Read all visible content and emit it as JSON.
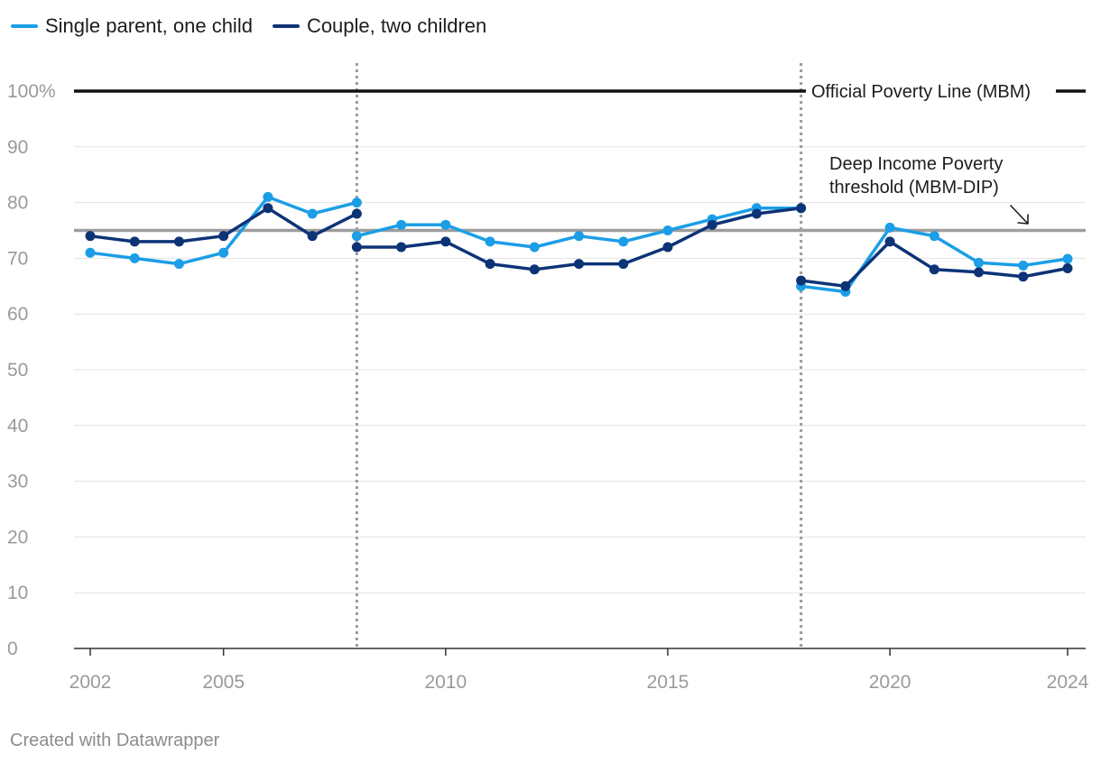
{
  "legend": [
    {
      "label": "Single parent, one child",
      "color": "#1b9ee6"
    },
    {
      "label": "Couple, two children",
      "color": "#0d3377"
    }
  ],
  "credit": "Created with Datawrapper",
  "chart_data": {
    "type": "line",
    "title": "",
    "xlabel": "",
    "ylabel": "",
    "ylim": [
      0,
      100
    ],
    "xlim": [
      2002,
      2024
    ],
    "y_ticks": [
      0,
      10,
      20,
      30,
      40,
      50,
      60,
      70,
      80,
      90,
      100
    ],
    "y_tick_labels": [
      "0",
      "10",
      "20",
      "30",
      "40",
      "50",
      "60",
      "70",
      "80",
      "90",
      "100%"
    ],
    "x_ticks": [
      2002,
      2005,
      2010,
      2015,
      2020,
      2024
    ],
    "x_tick_labels": [
      "2002",
      "2005",
      "2010",
      "2015",
      "2020",
      "2024"
    ],
    "grid": true,
    "series": [
      {
        "name": "Single parent, one child",
        "color": "#1b9ee6",
        "segments": [
          {
            "x": [
              2002,
              2003,
              2004,
              2005,
              2006,
              2007,
              2008
            ],
            "y": [
              71,
              70,
              69,
              71,
              81,
              78,
              80
            ]
          },
          {
            "x": [
              2008,
              2009,
              2010,
              2011,
              2012,
              2013,
              2014,
              2015,
              2016,
              2017,
              2018
            ],
            "y": [
              74,
              76,
              76,
              73,
              72,
              74,
              73,
              75,
              77,
              79,
              79
            ]
          },
          {
            "x": [
              2018,
              2019,
              2020,
              2021,
              2022,
              2023,
              2024
            ],
            "y": [
              65,
              64,
              75.5,
              74,
              69.2,
              68.7,
              69.9
            ]
          }
        ]
      },
      {
        "name": "Couple, two children",
        "color": "#0d3377",
        "segments": [
          {
            "x": [
              2002,
              2003,
              2004,
              2005,
              2006,
              2007,
              2008
            ],
            "y": [
              74,
              73,
              73,
              74,
              79,
              74,
              78
            ]
          },
          {
            "x": [
              2008,
              2009,
              2010,
              2011,
              2012,
              2013,
              2014,
              2015,
              2016,
              2017,
              2018
            ],
            "y": [
              72,
              72,
              73,
              69,
              68,
              69,
              69,
              72,
              76,
              78,
              79
            ]
          },
          {
            "x": [
              2018,
              2019,
              2020,
              2021,
              2022,
              2023,
              2024
            ],
            "y": [
              66,
              65,
              73,
              68,
              67.5,
              66.7,
              68.2
            ]
          }
        ]
      }
    ],
    "reference_lines": [
      {
        "value": 100,
        "label": "Official Poverty Line (MBM)",
        "color": "#111111"
      },
      {
        "value": 75,
        "label_lines": [
          "Deep Income Poverty",
          "threshold (MBM-DIP)"
        ],
        "color": "#9e9e9e"
      }
    ],
    "vertical_markers": [
      2008,
      2018
    ]
  }
}
